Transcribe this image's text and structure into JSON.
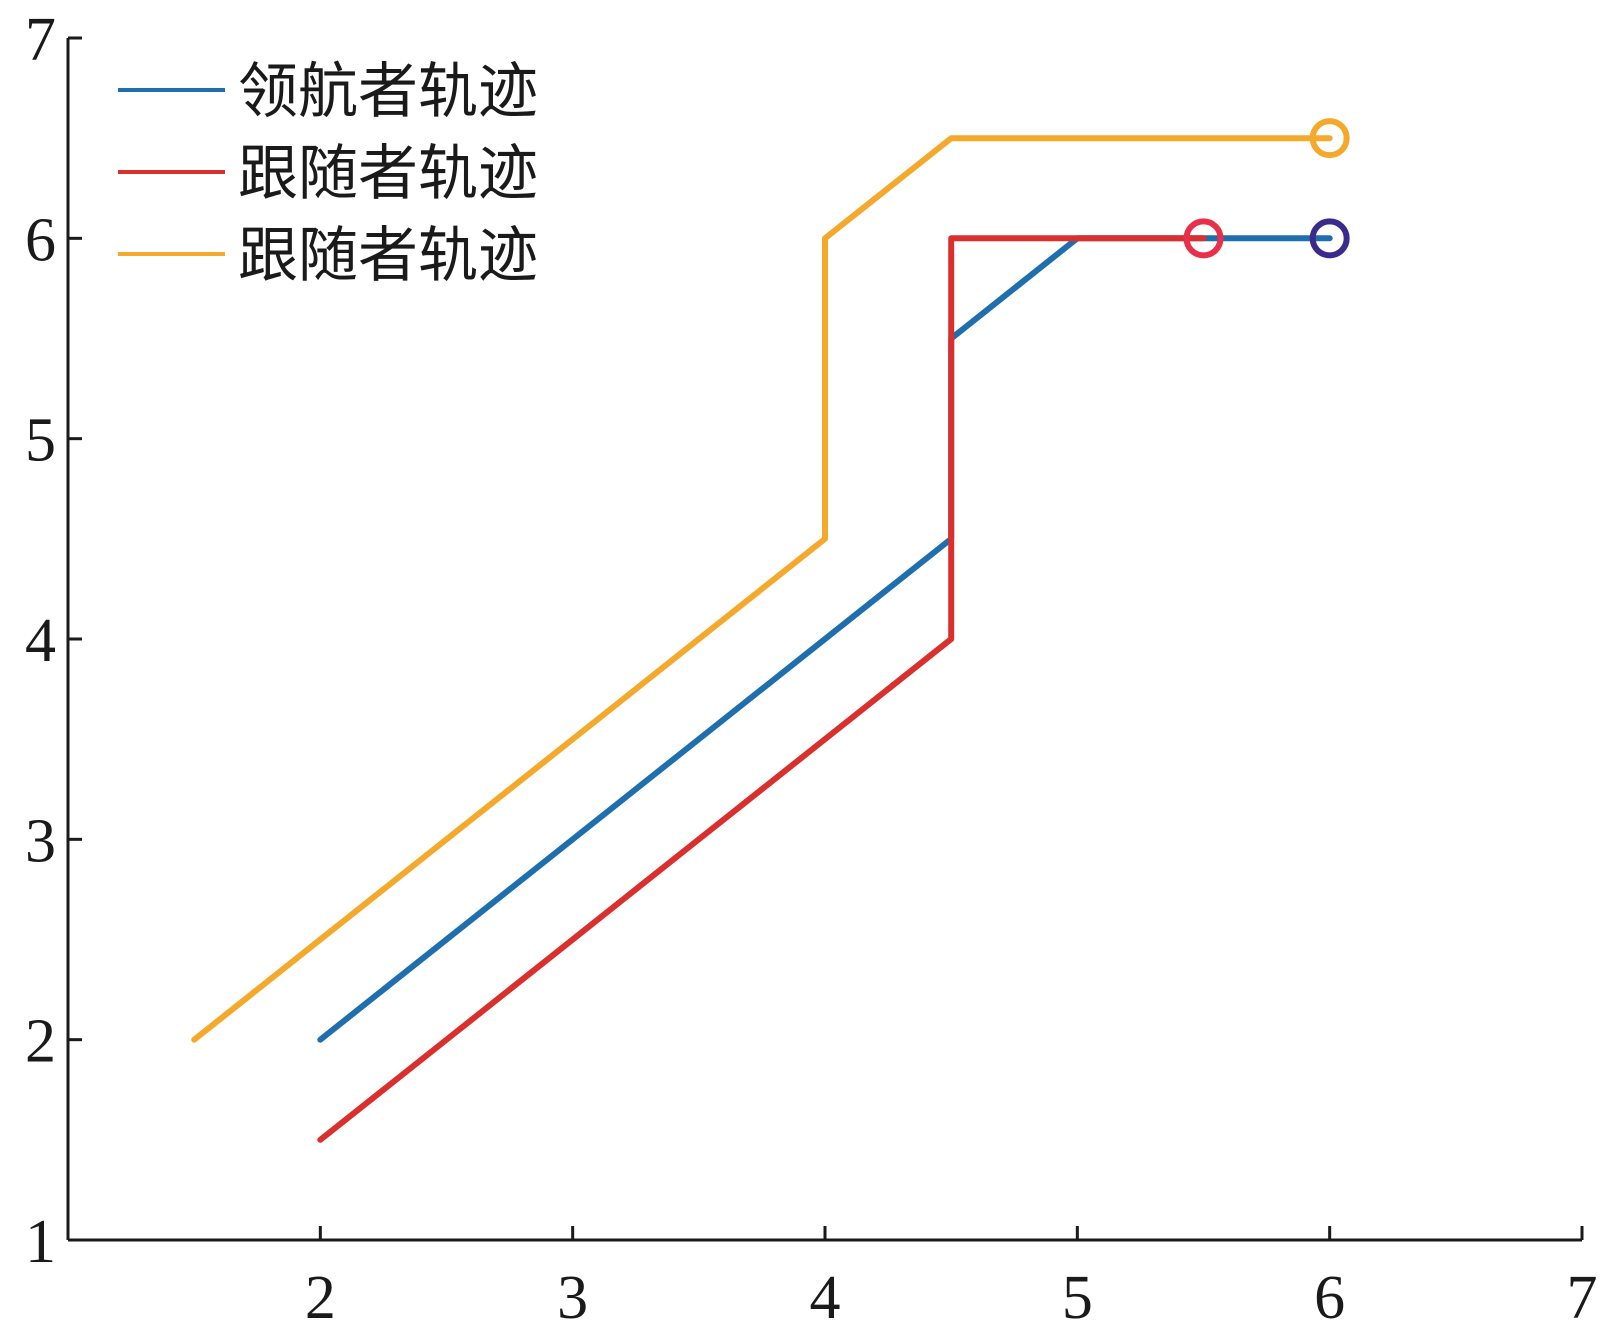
{
  "chart_data": {
    "type": "line",
    "xlim": [
      1,
      7
    ],
    "ylim": [
      1,
      7
    ],
    "xticks": [
      2,
      3,
      4,
      5,
      6,
      7
    ],
    "yticks": [
      1,
      2,
      3,
      4,
      5,
      6,
      7
    ],
    "grid": false,
    "legend_position": "top-left",
    "series": [
      {
        "name": "领航者轨迹",
        "color": "#1f6fae",
        "marker_color": "#3a2a8c",
        "points": [
          [
            2,
            2
          ],
          [
            2.5,
            2.5
          ],
          [
            3,
            3
          ],
          [
            3.5,
            3.5
          ],
          [
            4,
            4
          ],
          [
            4.5,
            4.5
          ],
          [
            4.5,
            5.5
          ],
          [
            5,
            6
          ],
          [
            6,
            6
          ]
        ]
      },
      {
        "name": "跟随者轨迹",
        "color": "#d9302e",
        "marker_color": "#e8304a",
        "points": [
          [
            2,
            1.5
          ],
          [
            2.5,
            2
          ],
          [
            3,
            2.5
          ],
          [
            3.5,
            3
          ],
          [
            4,
            3.5
          ],
          [
            4.5,
            4
          ],
          [
            4.5,
            6
          ],
          [
            5.5,
            6
          ]
        ]
      },
      {
        "name": "跟随者轨迹",
        "color": "#f4a92c",
        "marker_color": "#f4a92c",
        "points": [
          [
            1.5,
            2
          ],
          [
            2,
            2.5
          ],
          [
            2.5,
            3
          ],
          [
            3,
            3.5
          ],
          [
            3.5,
            4
          ],
          [
            4,
            4.5
          ],
          [
            4,
            6
          ],
          [
            4.5,
            6.5
          ],
          [
            5,
            6.5
          ],
          [
            5.5,
            6.5
          ],
          [
            6,
            6.5
          ]
        ]
      }
    ]
  }
}
